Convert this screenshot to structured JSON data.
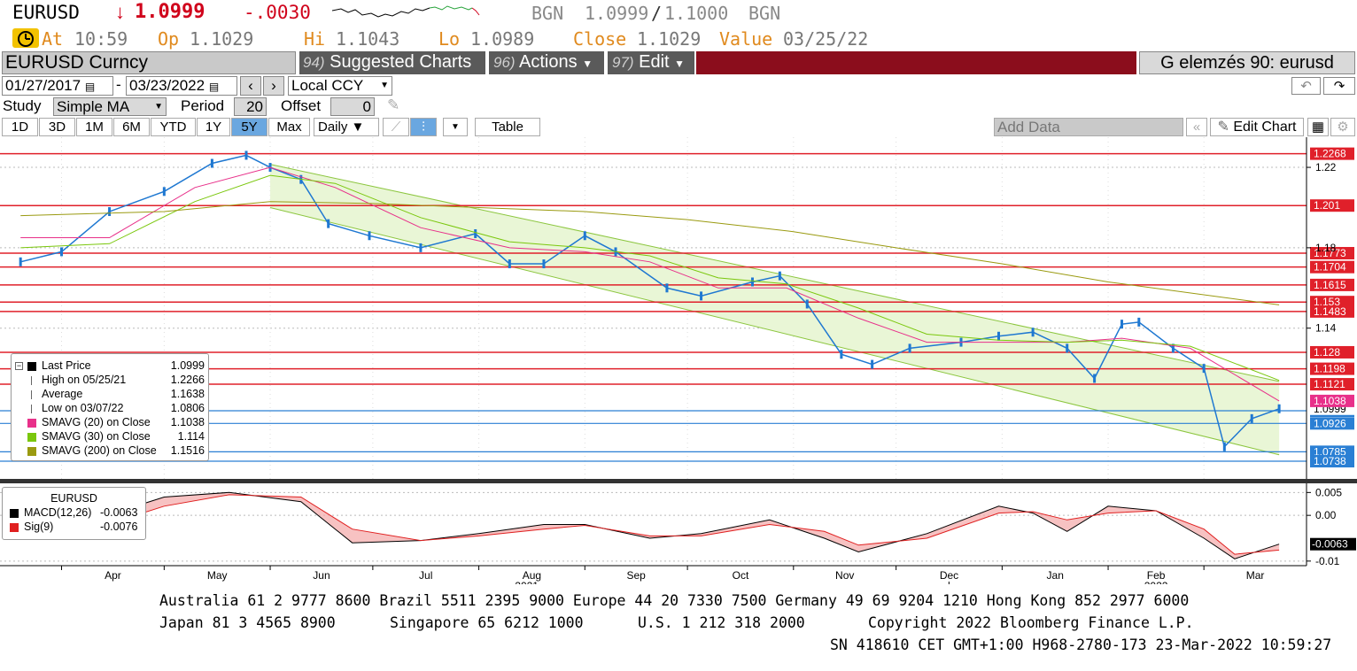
{
  "header": {
    "symbol": "EURUSD",
    "arrow": "↓",
    "last": "1.0999",
    "change": "-.0030",
    "bgn_left": "BGN",
    "bid": "1.0999",
    "separator": "/",
    "ask": "1.1000",
    "bgn_right": "BGN",
    "at_label": "At",
    "at_value": "10:59",
    "op_label": "Op",
    "op_value": "1.1029",
    "hi_label": "Hi",
    "hi_value": "1.1043",
    "lo_label": "Lo",
    "lo_value": "1.0989",
    "close_label": "Close",
    "close_value": "1.1029",
    "value_label": "Value",
    "value_value": "03/25/22"
  },
  "toolbar": {
    "security": "EURUSD Curncy",
    "suggested_num": "94)",
    "suggested_label": "Suggested Charts",
    "actions_num": "96)",
    "actions_label": "Actions",
    "edit_num": "97)",
    "edit_label": "Edit",
    "chart_title": "G elemzés 90: eurusd",
    "date_from": "01/27/2017",
    "date_dash": "-",
    "date_to": "03/23/2022",
    "currency": "Local CCY",
    "study_label": "Study",
    "study_value": "Simple MA",
    "period_label": "Period",
    "period_value": "20",
    "offset_label": "Offset",
    "offset_value": "0",
    "tabs": [
      "1D",
      "3D",
      "1M",
      "6M",
      "YTD",
      "1Y",
      "5Y",
      "Max"
    ],
    "selected_tab": "5Y",
    "frequency": "Daily ▼",
    "table_label": "Table",
    "add_data": "Add Data",
    "edit_chart": "Edit Chart"
  },
  "legend": {
    "rows": [
      {
        "name": "Last Price",
        "value": "1.0999",
        "color": "#000000"
      },
      {
        "name": "High on 05/25/21",
        "value": "1.2266",
        "color": ""
      },
      {
        "name": "Average",
        "value": "1.1638",
        "color": ""
      },
      {
        "name": "Low on 03/07/22",
        "value": "1.0806",
        "color": ""
      },
      {
        "name": "SMAVG (20)  on Close",
        "value": "1.1038",
        "color": "#e8308a"
      },
      {
        "name": "SMAVG (30)  on Close",
        "value": "1.114",
        "color": "#7ac70c"
      },
      {
        "name": "SMAVG (200)  on Close",
        "value": "1.1516",
        "color": "#9a9a10"
      }
    ]
  },
  "macd_legend": {
    "title": "EURUSD",
    "macd_name": "MACD(12,26)",
    "macd_value": "-0.0063",
    "sig_name": "Sig(9)",
    "sig_value": "-0.0076"
  },
  "chart_data": {
    "type": "line",
    "price_panel": {
      "ylim": [
        1.065,
        1.235
      ],
      "y_ticks": [
        1.22,
        1.18,
        1.14
      ],
      "hlines_red": [
        "1.2268",
        "1.201",
        "1.1773",
        "1.1704",
        "1.1615",
        "1.153",
        "1.1483",
        "1.128",
        "1.1198",
        "1.1121"
      ],
      "hlines_blue": [
        "1.0989",
        "1.0926",
        "1.0785",
        "1.0738"
      ],
      "last_label": "1.0999",
      "sma20_label": "1.1038",
      "series": [
        {
          "name": "Last Price",
          "color": "#1f78d1",
          "x": [
            "2021-03-20",
            "2021-04-01",
            "2021-04-15",
            "2021-05-01",
            "2021-05-15",
            "2021-05-25",
            "2021-06-01",
            "2021-06-10",
            "2021-06-18",
            "2021-06-30",
            "2021-07-15",
            "2021-07-31",
            "2021-08-10",
            "2021-08-20",
            "2021-09-01",
            "2021-09-10",
            "2021-09-25",
            "2021-10-05",
            "2021-10-20",
            "2021-10-28",
            "2021-11-05",
            "2021-11-15",
            "2021-11-24",
            "2021-12-05",
            "2021-12-20",
            "2021-12-31",
            "2022-01-10",
            "2022-01-20",
            "2022-01-28",
            "2022-02-05",
            "2022-02-10",
            "2022-02-20",
            "2022-03-01",
            "2022-03-07",
            "2022-03-15",
            "2022-03-23"
          ],
          "y": [
            1.173,
            1.178,
            1.198,
            1.208,
            1.222,
            1.226,
            1.22,
            1.214,
            1.192,
            1.186,
            1.18,
            1.187,
            1.172,
            1.172,
            1.186,
            1.178,
            1.16,
            1.156,
            1.163,
            1.166,
            1.152,
            1.127,
            1.122,
            1.13,
            1.133,
            1.136,
            1.138,
            1.13,
            1.115,
            1.142,
            1.143,
            1.13,
            1.12,
            1.081,
            1.095,
            1.0999
          ]
        },
        {
          "name": "SMAVG (20)",
          "color": "#e8308a",
          "x": [
            "2021-03-20",
            "2021-04-15",
            "2021-05-10",
            "2021-06-01",
            "2021-06-20",
            "2021-07-15",
            "2021-08-10",
            "2021-09-01",
            "2021-09-20",
            "2021-10-10",
            "2021-10-30",
            "2021-11-20",
            "2021-12-10",
            "2021-12-31",
            "2022-01-20",
            "2022-02-05",
            "2022-02-25",
            "2022-03-23"
          ],
          "y": [
            1.185,
            1.185,
            1.21,
            1.22,
            1.21,
            1.19,
            1.18,
            1.178,
            1.173,
            1.16,
            1.16,
            1.145,
            1.133,
            1.133,
            1.133,
            1.135,
            1.13,
            1.1038
          ]
        },
        {
          "name": "SMAVG (30)",
          "color": "#7ac70c",
          "x": [
            "2021-03-20",
            "2021-04-15",
            "2021-05-10",
            "2021-06-01",
            "2021-06-20",
            "2021-07-15",
            "2021-08-10",
            "2021-09-01",
            "2021-09-20",
            "2021-10-10",
            "2021-10-30",
            "2021-11-20",
            "2021-12-10",
            "2021-12-31",
            "2022-01-20",
            "2022-02-05",
            "2022-02-25",
            "2022-03-23"
          ],
          "y": [
            1.18,
            1.182,
            1.203,
            1.216,
            1.212,
            1.195,
            1.183,
            1.18,
            1.176,
            1.165,
            1.162,
            1.15,
            1.137,
            1.134,
            1.133,
            1.134,
            1.131,
            1.114
          ]
        },
        {
          "name": "SMAVG (200)",
          "color": "#9a9a10",
          "x": [
            "2021-03-20",
            "2021-05-01",
            "2021-06-01",
            "2021-07-01",
            "2021-08-01",
            "2021-09-01",
            "2021-10-01",
            "2021-11-01",
            "2021-12-01",
            "2022-01-01",
            "2022-02-01",
            "2022-03-23"
          ],
          "y": [
            1.196,
            1.198,
            1.203,
            1.202,
            1.2,
            1.198,
            1.194,
            1.188,
            1.18,
            1.172,
            1.163,
            1.1516
          ]
        }
      ],
      "channel": {
        "upper": {
          "x": [
            "2021-06-01",
            "2022-03-23"
          ],
          "y": [
            1.2215,
            1.1135
          ]
        },
        "lower": {
          "x": [
            "2021-06-01",
            "2022-03-23"
          ],
          "y": [
            1.2,
            1.077
          ]
        }
      }
    },
    "macd_panel": {
      "ylim": [
        -0.011,
        0.007
      ],
      "y_ticks": [
        "0.005",
        "0.00",
        "-0.01"
      ],
      "last_label": "-0.0063",
      "series": [
        {
          "name": "MACD(12,26)",
          "color": "#000000",
          "x": [
            "2021-03-20",
            "2021-04-10",
            "2021-05-01",
            "2021-05-20",
            "2021-06-10",
            "2021-06-25",
            "2021-07-15",
            "2021-08-01",
            "2021-08-20",
            "2021-09-01",
            "2021-09-20",
            "2021-10-05",
            "2021-10-25",
            "2021-11-10",
            "2021-11-20",
            "2021-12-10",
            "2021-12-31",
            "2022-01-10",
            "2022-01-20",
            "2022-02-01",
            "2022-02-15",
            "2022-03-01",
            "2022-03-10",
            "2022-03-23"
          ],
          "y": [
            -0.004,
            -0.001,
            0.004,
            0.005,
            0.003,
            -0.006,
            -0.0055,
            -0.004,
            -0.002,
            -0.002,
            -0.005,
            -0.004,
            -0.001,
            -0.005,
            -0.008,
            -0.004,
            0.002,
            0.0005,
            -0.0035,
            0.002,
            0.001,
            -0.005,
            -0.0095,
            -0.0063
          ]
        },
        {
          "name": "Sig(9)",
          "color": "#e02020",
          "x": [
            "2021-03-20",
            "2021-04-10",
            "2021-05-01",
            "2021-05-20",
            "2021-06-10",
            "2021-06-25",
            "2021-07-15",
            "2021-08-01",
            "2021-08-20",
            "2021-09-01",
            "2021-09-20",
            "2021-10-05",
            "2021-10-25",
            "2021-11-10",
            "2021-11-20",
            "2021-12-10",
            "2021-12-31",
            "2022-01-10",
            "2022-01-20",
            "2022-02-01",
            "2022-02-15",
            "2022-03-01",
            "2022-03-10",
            "2022-03-23"
          ],
          "y": [
            -0.005,
            -0.003,
            0.002,
            0.0045,
            0.004,
            -0.003,
            -0.0055,
            -0.0045,
            -0.003,
            -0.0022,
            -0.0045,
            -0.0045,
            -0.002,
            -0.0035,
            -0.0065,
            -0.005,
            0.0005,
            0.0008,
            -0.001,
            0.0005,
            0.001,
            -0.003,
            -0.0085,
            -0.0076
          ]
        }
      ]
    },
    "x_axis": {
      "months": [
        "Apr",
        "May",
        "Jun",
        "Jul",
        "Aug",
        "Sep",
        "Oct",
        "Nov",
        "Dec",
        "Jan",
        "Feb",
        "Mar"
      ],
      "years": [
        "2021",
        "2022"
      ]
    }
  },
  "footer": {
    "line1": "Australia 61 2 9777 8600 Brazil 5511 2395 9000 Europe 44 20 7330 7500 Germany 49 69 9204 1210 Hong Kong 852 2977 6000",
    "line2a": "Japan 81 3 4565 8900",
    "line2b": "Singapore 65 6212 1000",
    "line2c": "U.S. 1 212 318 2000",
    "line2d": "Copyright 2022 Bloomberg Finance L.P.",
    "line3": "SN 418610 CET  GMT+1:00 H968-2780-173 23-Mar-2022 10:59:27"
  }
}
